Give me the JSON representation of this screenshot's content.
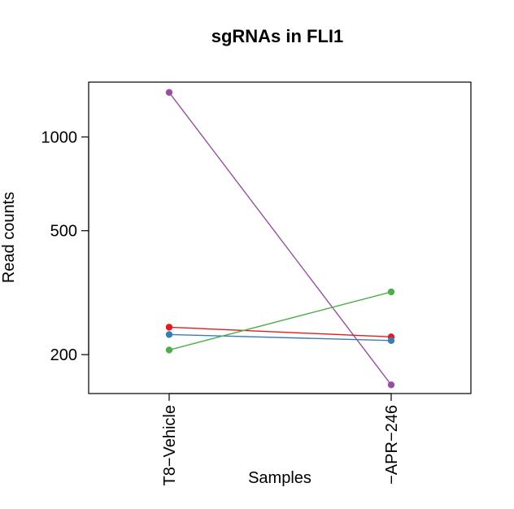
{
  "chart_data": {
    "type": "line",
    "title": "sgRNAs in FLI1",
    "xlabel": "Samples",
    "ylabel": "Read counts",
    "y_scale": "log",
    "ylim": [
      150,
      1500
    ],
    "yticks": [
      200,
      500,
      1000
    ],
    "categories": [
      "T8−Vehicle",
      "−APR−246"
    ],
    "series": [
      {
        "color": "#984EA3",
        "values": [
          1390,
          160
        ]
      },
      {
        "color": "#E41A1C",
        "values": [
          245,
          228
        ]
      },
      {
        "color": "#377EB8",
        "values": [
          232,
          222
        ]
      },
      {
        "color": "#4DAF4A",
        "values": [
          207,
          318
        ]
      }
    ],
    "grid": false,
    "legend": "none"
  }
}
